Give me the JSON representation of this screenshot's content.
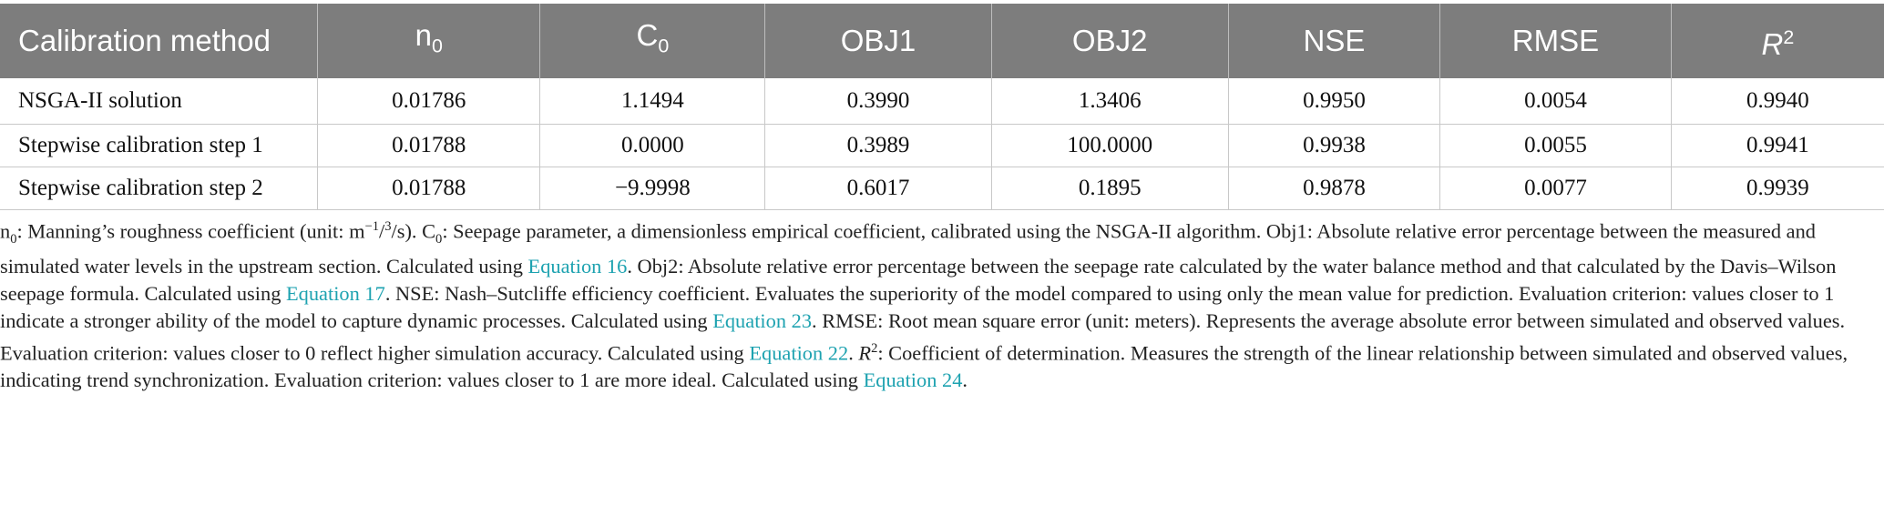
{
  "header": {
    "method": "Calibration method",
    "n0": "n",
    "n0_sub": "0",
    "c0": "C",
    "c0_sub": "0",
    "obj1": "OBJ1",
    "obj2": "OBJ2",
    "nse": "NSE",
    "rmse": "RMSE",
    "r2": "R",
    "r2_sup": "2"
  },
  "rows": [
    {
      "method": "NSGA-II solution",
      "n0": "0.01786",
      "c0": "1.1494",
      "obj1": "0.3990",
      "obj2": "1.3406",
      "nse": "0.9950",
      "rmse": "0.0054",
      "r2": "0.9940"
    },
    {
      "method": "Stepwise calibration step 1",
      "n0": "0.01788",
      "c0": "0.0000",
      "obj1": "0.3989",
      "obj2": "100.0000",
      "nse": "0.9938",
      "rmse": "0.0055",
      "r2": "0.9941"
    },
    {
      "method": "Stepwise calibration step 2",
      "n0": "0.01788",
      "c0": "−9.9998",
      "obj1": "0.6017",
      "obj2": "0.1895",
      "nse": "0.9878",
      "rmse": "0.0077",
      "r2": "0.9939"
    }
  ],
  "notes": {
    "n0_sym": "n",
    "n0_sym_sub": "0",
    "t1": ": Manning’s roughness coefficient (unit: m",
    "t1_sup": "−1",
    "t1b": "/",
    "t1_sup2": "3",
    "t1c": "/s). C",
    "t1c_sub": "0",
    "t2": ": Seepage parameter, a dimensionless empirical coefficient, calibrated using the NSGA-II algorithm. Obj1: Absolute relative error percentage between the measured and simulated water levels in the upstream section. Calculated using ",
    "eq16": "Equation 16",
    "t3": ". Obj2: Absolute relative error percentage between the seepage rate calculated by the water balance method and that calculated by the Davis–Wilson seepage formula. Calculated using ",
    "eq17": "Equation 17",
    "t4": ". NSE: Nash–Sutcliffe efficiency coefficient. Evaluates the superiority of the model compared to using only the mean value for prediction. Evaluation criterion: values closer to 1 indicate a stronger ability of the model to capture dynamic processes. Calculated using ",
    "eq23": "Equation 23",
    "t5": ". RMSE: Root mean square error (unit: meters). Represents the average absolute error between simulated and observed values. Evaluation criterion: values closer to 0 reflect higher simulation accuracy. Calculated using ",
    "eq22": "Equation 22",
    "t6a": ". ",
    "r2_sym": "R",
    "r2_sym_sup": "2",
    "t6": ": Coefficient of determination. Measures the strength of the linear relationship between simulated and observed values, indicating trend synchronization. Evaluation criterion: values closer to 1 are more ideal. Calculated using ",
    "eq24": "Equation 24",
    "t7": "."
  }
}
